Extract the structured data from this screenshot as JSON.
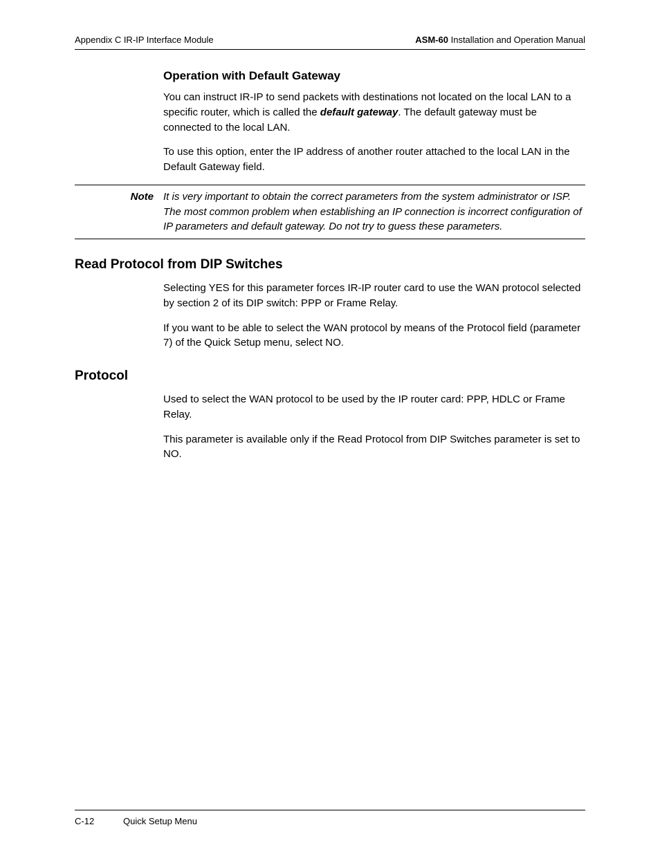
{
  "header": {
    "left": "Appendix C  IR-IP Interface Module",
    "right_bold": "ASM-60",
    "right_rest": " Installation and Operation Manual"
  },
  "sections": {
    "opdef": {
      "heading": "Operation with Default Gateway",
      "p1_a": "You can instruct IR-IP to send packets with destinations not located on the local LAN to a specific router, which is called the ",
      "p1_em": "default gateway",
      "p1_b": ". The default gateway must be connected to the local LAN.",
      "p2": "To use this option, enter the IP address of another router attached to the local LAN in the Default Gateway field."
    },
    "note": {
      "label": "Note",
      "body": "It is very important to obtain the correct parameters from the system administrator or ISP. The most common problem when establishing an IP connection is incorrect configuration of IP parameters and default gateway. Do not try to guess these parameters."
    },
    "readproto": {
      "heading": "Read Protocol from DIP Switches",
      "p1": "Selecting YES for this parameter forces IR-IP router card to use the WAN protocol selected by section 2 of its DIP switch: PPP or Frame Relay.",
      "p2": "If you want to be able to select the WAN protocol by means of the Protocol field (parameter 7) of the Quick Setup menu, select NO."
    },
    "protocol": {
      "heading": "Protocol",
      "p1": "Used to select the WAN protocol to be used by the IP router card: PPP, HDLC or Frame Relay.",
      "p2": "This parameter is available only if the Read Protocol from DIP Switches parameter is set to NO."
    }
  },
  "footer": {
    "page": "C-12",
    "title": "Quick Setup Menu"
  }
}
